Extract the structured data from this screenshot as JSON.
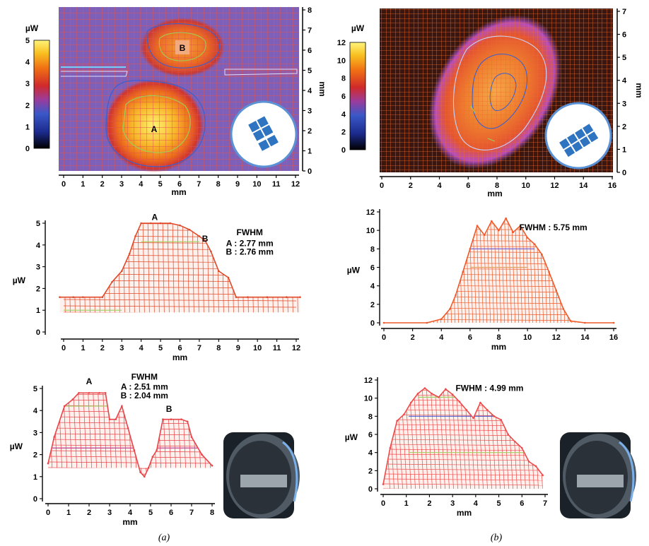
{
  "panel_labels": [
    "(a)",
    "(b)"
  ],
  "chart_data": [
    {
      "id": "a-map",
      "type": "heatmap",
      "xlabel": "mm",
      "ylabel": "mm",
      "xlim": [
        0,
        12
      ],
      "ylim": [
        0,
        8
      ],
      "xticks": [
        0,
        1,
        2,
        3,
        4,
        5,
        6,
        7,
        8,
        9,
        10,
        11,
        12
      ],
      "yticks": [
        0,
        1,
        2,
        3,
        4,
        5,
        6,
        7,
        8
      ],
      "colorbar": {
        "label": "µW",
        "range": [
          0,
          5
        ],
        "ticks": [
          0,
          1,
          2,
          3,
          4,
          5
        ]
      },
      "spots": [
        {
          "label": "A",
          "x": 4.7,
          "y": 2.0,
          "peak": 5.0
        },
        {
          "label": "B",
          "x": 6.1,
          "y": 6.1,
          "peak": 4.3
        }
      ],
      "grid": true
    },
    {
      "id": "b-map",
      "type": "heatmap",
      "xlabel": "mm",
      "ylabel": "mm",
      "xlim": [
        0,
        16
      ],
      "ylim": [
        0,
        7
      ],
      "xticks": [
        0,
        2,
        4,
        6,
        8,
        10,
        12,
        14,
        16
      ],
      "yticks": [
        0,
        1,
        2,
        3,
        4,
        5,
        6,
        7
      ],
      "colorbar": {
        "label": "µW",
        "range": [
          0,
          12
        ],
        "ticks": [
          0,
          2,
          4,
          6,
          8,
          10,
          12
        ]
      },
      "spots": [
        {
          "x": 8.0,
          "y": 3.8,
          "peak": 11.0
        }
      ],
      "grid": true
    },
    {
      "id": "a-profile-x",
      "type": "line",
      "xlabel": "mm",
      "ylabel": "µW",
      "xlim": [
        0,
        12
      ],
      "ylim": [
        0,
        5
      ],
      "xticks": [
        0,
        1,
        2,
        3,
        4,
        5,
        6,
        7,
        8,
        9,
        10,
        11,
        12
      ],
      "yticks": [
        0,
        1,
        2,
        3,
        4,
        5
      ],
      "x": [
        -0.2,
        0.5,
        1.0,
        2.0,
        2.5,
        3.0,
        3.4,
        3.7,
        4.0,
        4.5,
        5.0,
        5.5,
        6.0,
        6.5,
        7.0,
        7.3,
        7.6,
        8.0,
        8.5,
        8.9,
        9.5,
        10.5,
        11.5,
        12.2
      ],
      "values": [
        1.6,
        1.6,
        1.6,
        1.6,
        2.3,
        2.8,
        3.6,
        4.4,
        5.0,
        5.0,
        5.0,
        5.0,
        4.9,
        4.7,
        4.4,
        4.2,
        3.7,
        2.8,
        2.5,
        1.6,
        1.6,
        1.6,
        1.6,
        1.6
      ],
      "annotations": [
        {
          "text": "A",
          "x": 4.7,
          "y": 5.15
        },
        {
          "text": "B",
          "x": 7.3,
          "y": 4.15
        },
        {
          "text": "FWHM",
          "x": 9.6,
          "y": 4.45
        },
        {
          "text": "A : 2.77 mm",
          "x": 9.6,
          "y": 3.95
        },
        {
          "text": "B : 2.76 mm",
          "x": 9.6,
          "y": 3.55
        }
      ]
    },
    {
      "id": "b-profile-x",
      "type": "line",
      "xlabel": "mm",
      "ylabel": "µW",
      "xlim": [
        0,
        16
      ],
      "ylim": [
        0,
        12
      ],
      "xticks": [
        0,
        2,
        4,
        6,
        8,
        10,
        12,
        14,
        16
      ],
      "yticks": [
        0,
        2,
        4,
        6,
        8,
        10,
        12
      ],
      "x": [
        0,
        3.0,
        4.0,
        4.6,
        5.0,
        5.5,
        6.0,
        6.5,
        7.0,
        7.5,
        8.0,
        8.5,
        9.0,
        9.5,
        10.0,
        10.5,
        11.0,
        11.5,
        12.0,
        12.5,
        13.0,
        14.0,
        16.0
      ],
      "values": [
        0,
        0,
        0.4,
        1.5,
        3.0,
        5.5,
        8.0,
        10.5,
        9.5,
        11.0,
        10.0,
        11.3,
        9.8,
        10.5,
        9.2,
        8.5,
        7.4,
        5.5,
        3.5,
        1.5,
        0.2,
        0,
        0
      ],
      "annotations": [
        {
          "text": "FWHM : 5.75 mm",
          "x": 11.8,
          "y": 10.0
        }
      ]
    },
    {
      "id": "a-profile-y",
      "type": "line",
      "xlabel": "mm",
      "ylabel": "µW",
      "xlim": [
        0,
        8
      ],
      "ylim": [
        0,
        5
      ],
      "xticks": [
        0,
        1,
        2,
        3,
        4,
        5,
        6,
        7,
        8
      ],
      "yticks": [
        0,
        1,
        2,
        3,
        4,
        5
      ],
      "x": [
        0,
        0.3,
        0.8,
        1.2,
        1.5,
        2.0,
        2.5,
        2.8,
        3.0,
        3.3,
        3.6,
        3.9,
        4.2,
        4.5,
        4.7,
        4.9,
        5.1,
        5.3,
        5.6,
        6.0,
        6.5,
        6.8,
        7.0,
        7.5,
        8.0
      ],
      "values": [
        1.6,
        2.8,
        4.2,
        4.5,
        4.8,
        4.8,
        4.8,
        4.8,
        3.6,
        3.6,
        4.2,
        3.2,
        2.2,
        1.2,
        1.0,
        1.4,
        1.9,
        2.2,
        3.6,
        3.6,
        3.6,
        3.5,
        2.8,
        2.0,
        1.5
      ],
      "annotations": [
        {
          "text": "A",
          "x": 2.0,
          "y": 5.2
        },
        {
          "text": "B",
          "x": 5.9,
          "y": 3.95
        },
        {
          "text": "FWHM",
          "x": 4.7,
          "y": 5.4
        },
        {
          "text": "A : 2.51 mm",
          "x": 4.7,
          "y": 4.95
        },
        {
          "text": "B : 2.04 mm",
          "x": 4.7,
          "y": 4.55
        }
      ]
    },
    {
      "id": "b-profile-y",
      "type": "line",
      "xlabel": "mm",
      "ylabel": "µW",
      "xlim": [
        0,
        7
      ],
      "ylim": [
        0,
        12
      ],
      "xticks": [
        0,
        1,
        2,
        3,
        4,
        5,
        6,
        7
      ],
      "yticks": [
        0,
        2,
        4,
        6,
        8,
        10,
        12
      ],
      "x": [
        0,
        0.3,
        0.6,
        0.9,
        1.2,
        1.5,
        1.8,
        2.1,
        2.4,
        2.7,
        3.0,
        3.3,
        3.6,
        3.9,
        4.2,
        4.5,
        4.8,
        5.1,
        5.4,
        5.7,
        6.0,
        6.3,
        6.6,
        6.9
      ],
      "values": [
        0.5,
        4.5,
        7.5,
        8.2,
        9.5,
        10.5,
        11.1,
        10.5,
        10.1,
        11.0,
        10.4,
        9.6,
        8.7,
        7.8,
        9.5,
        8.7,
        8.0,
        7.6,
        6.0,
        5.2,
        4.5,
        3.0,
        2.5,
        1.5
      ],
      "annotations": [
        {
          "text": "FWHM : 4.99 mm",
          "x": 4.6,
          "y": 10.8
        }
      ]
    }
  ]
}
